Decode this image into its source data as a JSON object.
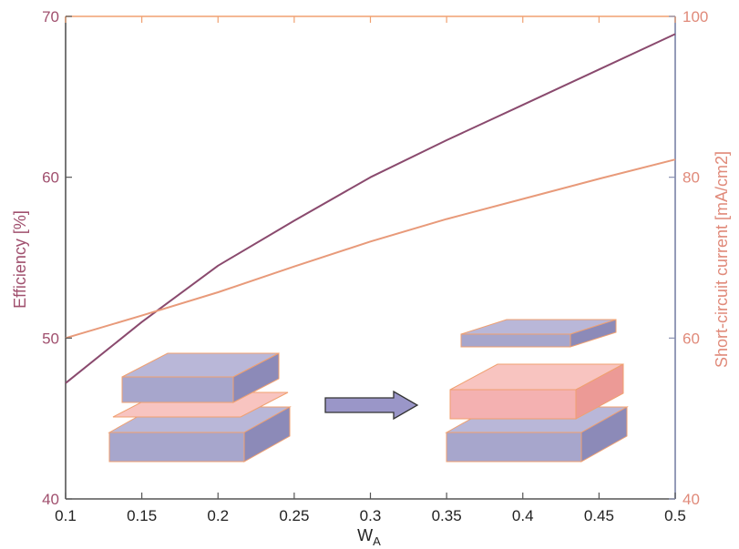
{
  "chart_data": {
    "type": "line",
    "title": "",
    "xlabel": "W",
    "xlabel_sub": "A",
    "ylabel_left": "Efficiency [%]",
    "ylabel_right": "Short-circuit current [mA/cm2]",
    "x": [
      0.1,
      0.15,
      0.2,
      0.25,
      0.3,
      0.35,
      0.4,
      0.45,
      0.5
    ],
    "xlim": [
      0.1,
      0.5
    ],
    "ylim_left": [
      40,
      70
    ],
    "ylim_right": [
      40,
      100
    ],
    "x_ticks": [
      "0.1",
      "0.15",
      "0.2",
      "0.25",
      "0.3",
      "0.35",
      "0.4",
      "0.45",
      "0.5"
    ],
    "y_left_ticks": [
      "40",
      "50",
      "60",
      "70"
    ],
    "y_right_ticks": [
      "40",
      "60",
      "80",
      "100"
    ],
    "grid": false,
    "series": [
      {
        "axis": "left",
        "color": "#8a4a6e",
        "values": [
          47.2,
          51.0,
          54.5,
          57.3,
          60.0,
          62.3,
          64.5,
          66.7,
          68.9
        ]
      },
      {
        "axis": "right",
        "color": "#e89a7a",
        "values": [
          60.0,
          62.8,
          65.7,
          68.9,
          72.0,
          74.8,
          77.3,
          79.8,
          82.2
        ]
      }
    ],
    "colors": {
      "left_axis": "#a0506e",
      "right_axis": "#e08a7a",
      "frame_left_bottom": "#555555",
      "frame_top": "#f0a070",
      "frame_right": "#8890b0",
      "block_purple": "#a8a8cc",
      "block_pink": "#f4b0b0",
      "arrow": "#9a96c8"
    }
  }
}
